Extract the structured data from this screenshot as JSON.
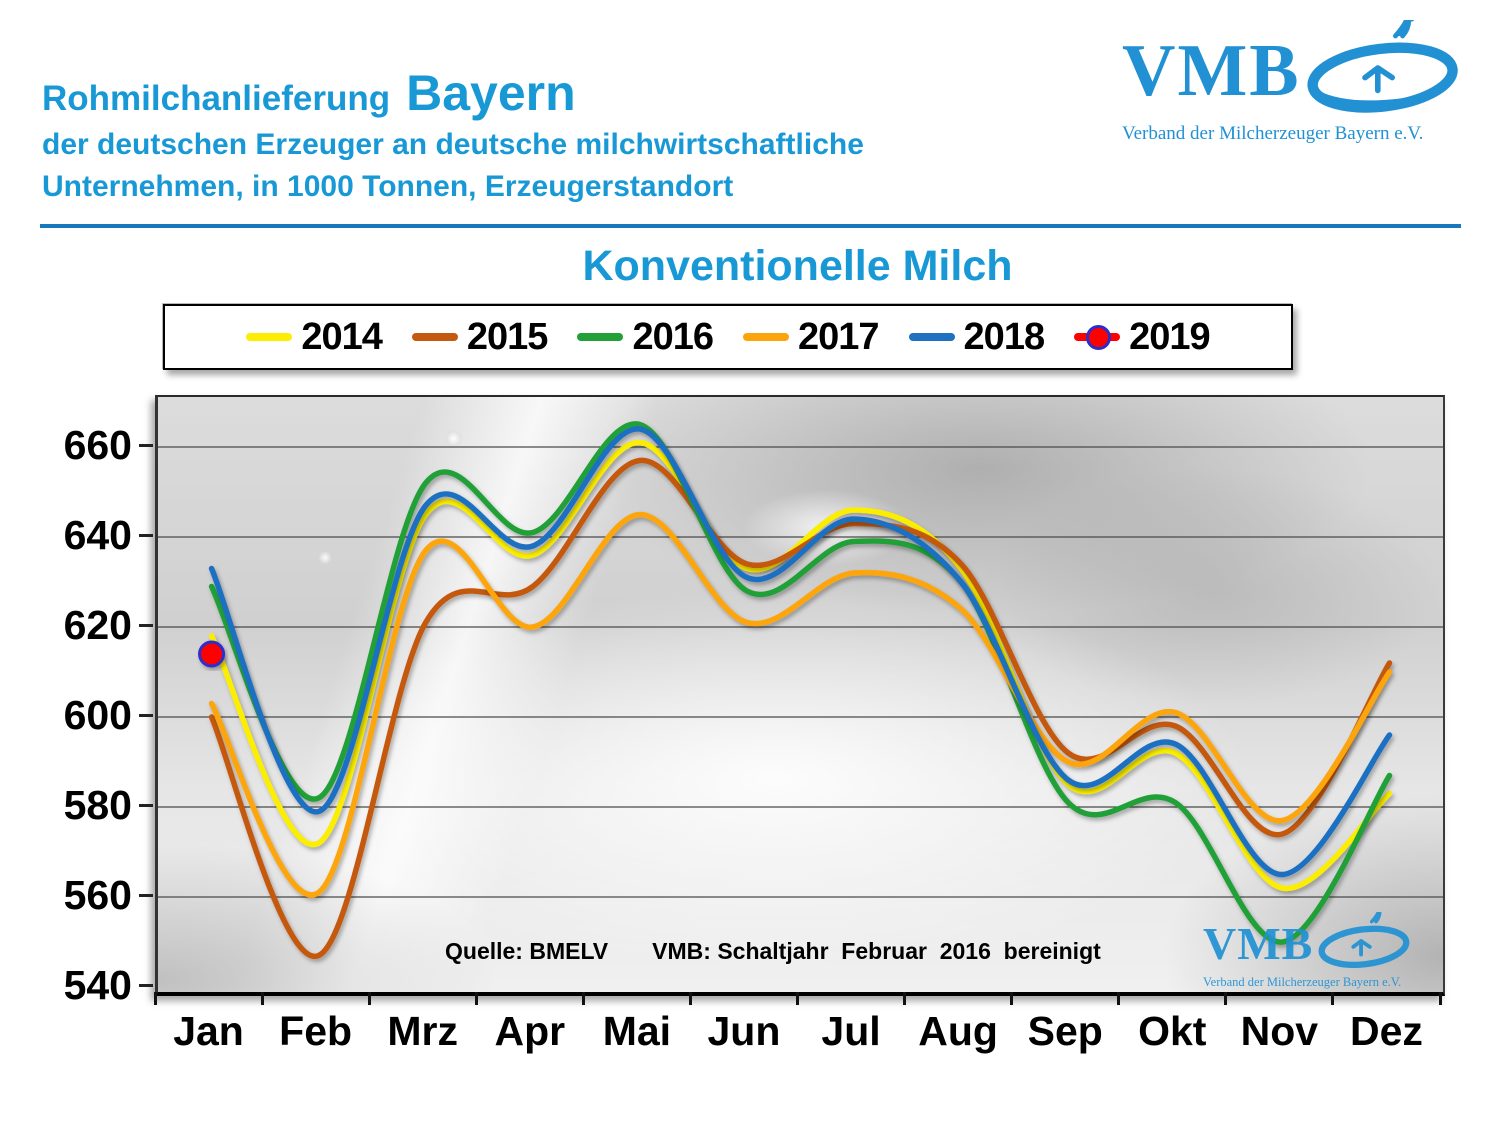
{
  "header": {
    "title_small": "Rohmilchanlieferung",
    "title_big": "Bayern",
    "subtitle1": "der deutschen Erzeuger an deutsche milchwirtschaftliche",
    "subtitle2": "Unternehmen, in 1000 Tonnen, Erzeugerstandort"
  },
  "logo": {
    "name": "VMB",
    "caption": "Verband der Milcherzeuger Bayern e.V."
  },
  "source_note": {
    "quelle": "Quelle: BMELV",
    "vmb": "VMB: Schaltjahr  Februar  2016  bereinigt"
  },
  "colors": {
    "header_blue": "#1899D6",
    "rule_blue": "#1878BE",
    "logo_blue": "#2191D4",
    "gridline": "#4a4a4a",
    "marker_ring": "#2D2DC8"
  },
  "chart_data": {
    "type": "line",
    "title": "Konventionelle Milch",
    "categories": [
      "Jan",
      "Feb",
      "Mrz",
      "Apr",
      "Mai",
      "Jun",
      "Jul",
      "Aug",
      "Sep",
      "Okt",
      "Nov",
      "Dez"
    ],
    "ylim": [
      540,
      660
    ],
    "ytick_step": 20,
    "grid": true,
    "legend_position": "top",
    "units": "1000 Tonnen",
    "series": [
      {
        "name": "2014",
        "color": "#FBEE00",
        "values": [
          618,
          572,
          645,
          636,
          661,
          633,
          646,
          633,
          585,
          592,
          562,
          583
        ]
      },
      {
        "name": "2015",
        "color": "#C45911",
        "values": [
          600,
          547,
          621,
          629,
          657,
          634,
          643,
          634,
          592,
          598,
          574,
          612
        ]
      },
      {
        "name": "2016",
        "color": "#21A038",
        "values": [
          629,
          582,
          652,
          641,
          665,
          628,
          639,
          630,
          581,
          581,
          550,
          587
        ]
      },
      {
        "name": "2017",
        "color": "#FCA50A",
        "values": [
          603,
          561,
          637,
          620,
          645,
          621,
          632,
          624,
          590,
          601,
          577,
          610
        ]
      },
      {
        "name": "2018",
        "color": "#1F70C1",
        "values": [
          633,
          579,
          647,
          638,
          664,
          631,
          644,
          630,
          586,
          594,
          565,
          596
        ]
      },
      {
        "name": "2019",
        "color": "#FF0000",
        "marker": "dot",
        "values": [
          614
        ]
      }
    ]
  }
}
